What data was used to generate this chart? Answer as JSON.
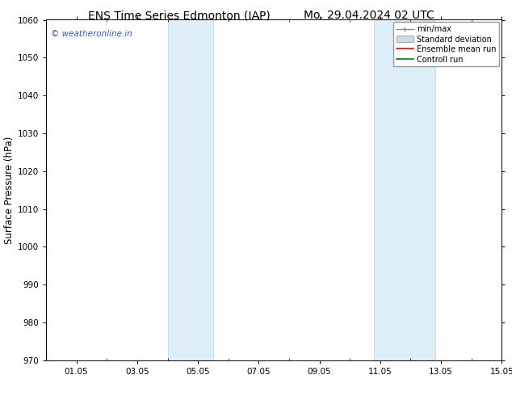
{
  "title_left": "ENS Time Series Edmonton (IAP)",
  "title_right": "Mo. 29.04.2024 02 UTC",
  "ylabel": "Surface Pressure (hPa)",
  "ylim": [
    970,
    1060
  ],
  "yticks": [
    970,
    980,
    990,
    1000,
    1010,
    1020,
    1030,
    1040,
    1050,
    1060
  ],
  "xlim": [
    0,
    15
  ],
  "xtick_positions": [
    1,
    3,
    5,
    7,
    9,
    11,
    13,
    15
  ],
  "xtick_labels": [
    "01.05",
    "03.05",
    "05.05",
    "07.05",
    "09.05",
    "11.05",
    "13.05",
    "15.05"
  ],
  "shaded_bands": [
    {
      "x_start": 4.0,
      "x_end": 5.5
    },
    {
      "x_start": 10.8,
      "x_end": 12.8
    }
  ],
  "shaded_color": "#ddeef8",
  "shaded_edge_color": "#b8d4e8",
  "watermark_text": "© weatheronline.in",
  "watermark_color": "#3355cc",
  "legend_labels": [
    "min/max",
    "Standard deviation",
    "Ensemble mean run",
    "Controll run"
  ],
  "legend_colors": [
    "#999999",
    "#c8dcea",
    "#ff0000",
    "#008000"
  ],
  "bg_color": "#ffffff",
  "grid_color": "#cccccc",
  "title_fontsize": 10,
  "tick_fontsize": 7.5,
  "ylabel_fontsize": 8.5
}
